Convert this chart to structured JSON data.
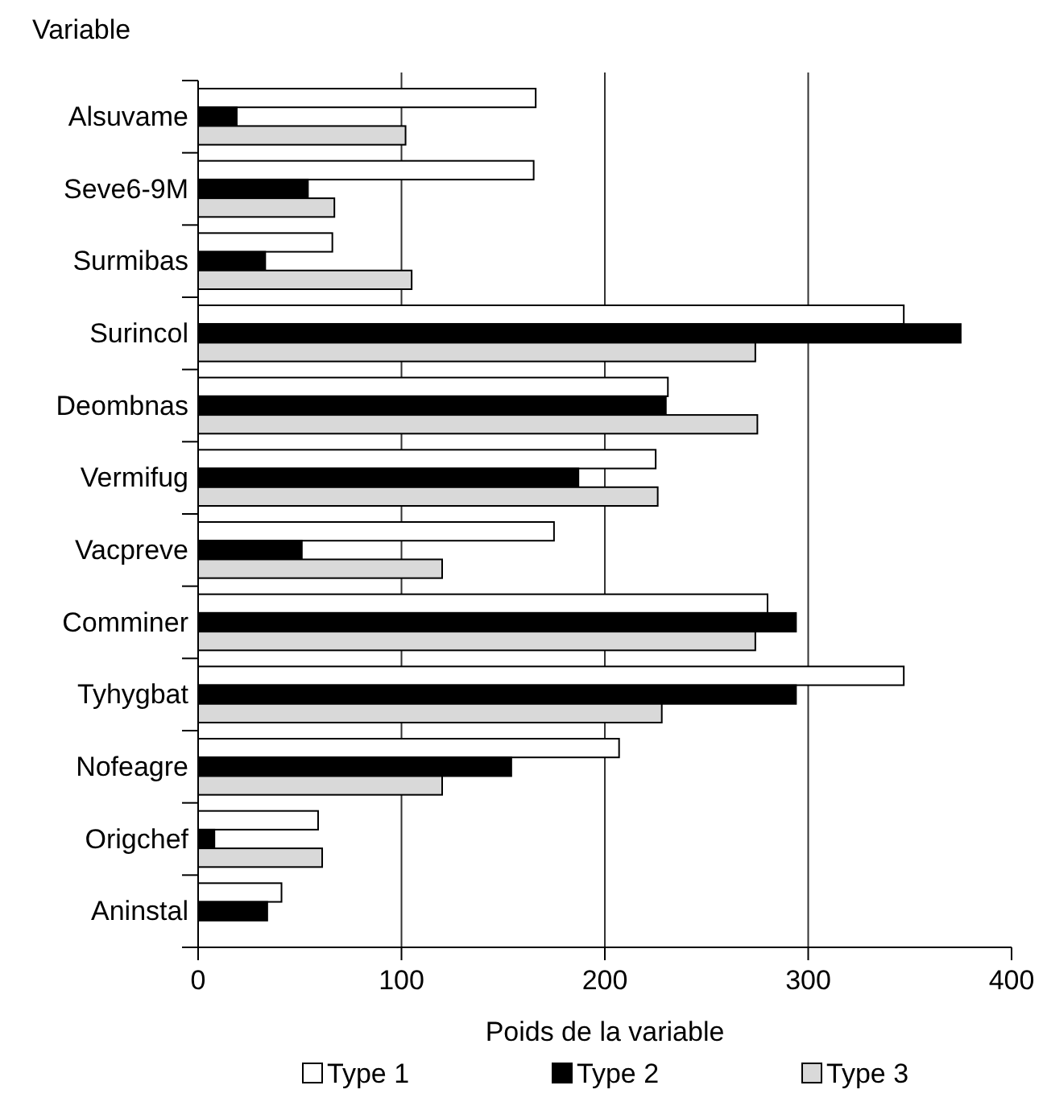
{
  "chart_data": {
    "type": "bar",
    "orientation": "horizontal",
    "ylabel": "Variable",
    "xlabel": "Poids de la variable",
    "categories": [
      "Alsuvame",
      "Seve6-9M",
      "Surmibas",
      "Surincol",
      "Deombnas",
      "Vermifug",
      "Vacpreve",
      "Comminer",
      "Tyhygbat",
      "Nofeagre",
      "Origchef",
      "Aninstal"
    ],
    "series": [
      {
        "name": "Type 1",
        "color": "#ffffff",
        "values": [
          166,
          165,
          66,
          347,
          231,
          225,
          175,
          280,
          347,
          207,
          59,
          41
        ]
      },
      {
        "name": "Type 2",
        "color": "#000000",
        "values": [
          19,
          54,
          33,
          375,
          230,
          187,
          51,
          294,
          294,
          154,
          8,
          34
        ]
      },
      {
        "name": "Type 3",
        "color": "#d9d9d9",
        "values": [
          102,
          67,
          105,
          274,
          275,
          226,
          120,
          274,
          228,
          120,
          61,
          null
        ]
      }
    ],
    "xlim": [
      0,
      400
    ],
    "xticks": [
      0,
      100,
      200,
      300,
      400
    ],
    "grid": "x",
    "legend": "bottom"
  }
}
